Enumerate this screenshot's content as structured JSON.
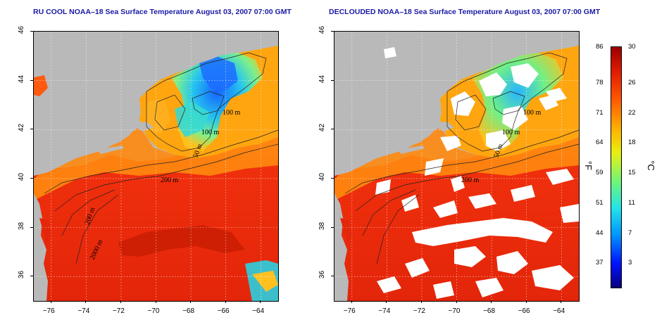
{
  "panels": [
    {
      "title": "RU COOL NOAA–18 Sea Surface Temperature August 03, 2007 07:00 GMT"
    },
    {
      "title": "DECLOUDED NOAA–18 Sea Surface Temperature August 03, 2007 07:00 GMT"
    }
  ],
  "axes": {
    "x_ticks": [
      "−76",
      "−74",
      "−72",
      "−70",
      "−68",
      "−66",
      "−64"
    ],
    "y_ticks": [
      "46",
      "44",
      "42",
      "40",
      "38",
      "36"
    ],
    "x_values": [
      -76,
      -74,
      -72,
      -70,
      -68,
      -66,
      -64
    ],
    "y_values": [
      46,
      44,
      42,
      40,
      38,
      36
    ],
    "lon_range": [
      -77,
      -63
    ],
    "lat_range": [
      35,
      46
    ]
  },
  "contour_labels": {
    "left": [
      "100 m",
      "100 m",
      "50 m",
      "200 m",
      "200 m",
      "2000 m"
    ],
    "right": [
      "100 m",
      "100 m",
      "50 m",
      "200 m"
    ]
  },
  "colorbar": {
    "fahrenheit": [
      "86",
      "78",
      "71",
      "64",
      "59",
      "51",
      "44",
      "37"
    ],
    "celsius": [
      "30",
      "26",
      "22",
      "18",
      "15",
      "11",
      "7",
      "3"
    ],
    "unit_f": "°F",
    "unit_c": "°C"
  },
  "colors": {
    "land": "#b9b9b9",
    "cloud": "#ffffff",
    "warm": "#e62a0a",
    "cold": "#1e8cff",
    "title": "#1a1aa6"
  }
}
